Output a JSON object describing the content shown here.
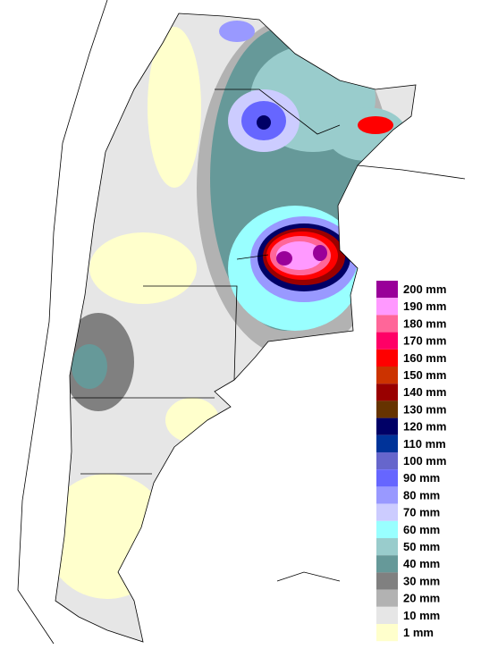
{
  "legend": [
    {
      "label": "200 mm",
      "color": "#990099"
    },
    {
      "label": "190 mm",
      "color": "#ff99ff"
    },
    {
      "label": "180 mm",
      "color": "#ff6699"
    },
    {
      "label": "170 mm",
      "color": "#ff0066"
    },
    {
      "label": "160 mm",
      "color": "#ff0000"
    },
    {
      "label": "150 mm",
      "color": "#cc3300"
    },
    {
      "label": "140 mm",
      "color": "#990000"
    },
    {
      "label": "130 mm",
      "color": "#663300"
    },
    {
      "label": "120 mm",
      "color": "#000066"
    },
    {
      "label": "110 mm",
      "color": "#003399"
    },
    {
      "label": "100 mm",
      "color": "#6666cc"
    },
    {
      "label": "90 mm",
      "color": "#6666ff"
    },
    {
      "label": "80 mm",
      "color": "#9999ff"
    },
    {
      "label": "70 mm",
      "color": "#ccccff"
    },
    {
      "label": "60 mm",
      "color": "#99ffff"
    },
    {
      "label": "50 mm",
      "color": "#99cccc"
    },
    {
      "label": "40 mm",
      "color": "#669999"
    },
    {
      "label": "30 mm",
      "color": "#808080"
    },
    {
      "label": "20 mm",
      "color": "#b2b2b2"
    },
    {
      "label": "10 mm",
      "color": "#e6e6e6"
    },
    {
      "label": "1 mm",
      "color": "#ffffcc"
    }
  ]
}
